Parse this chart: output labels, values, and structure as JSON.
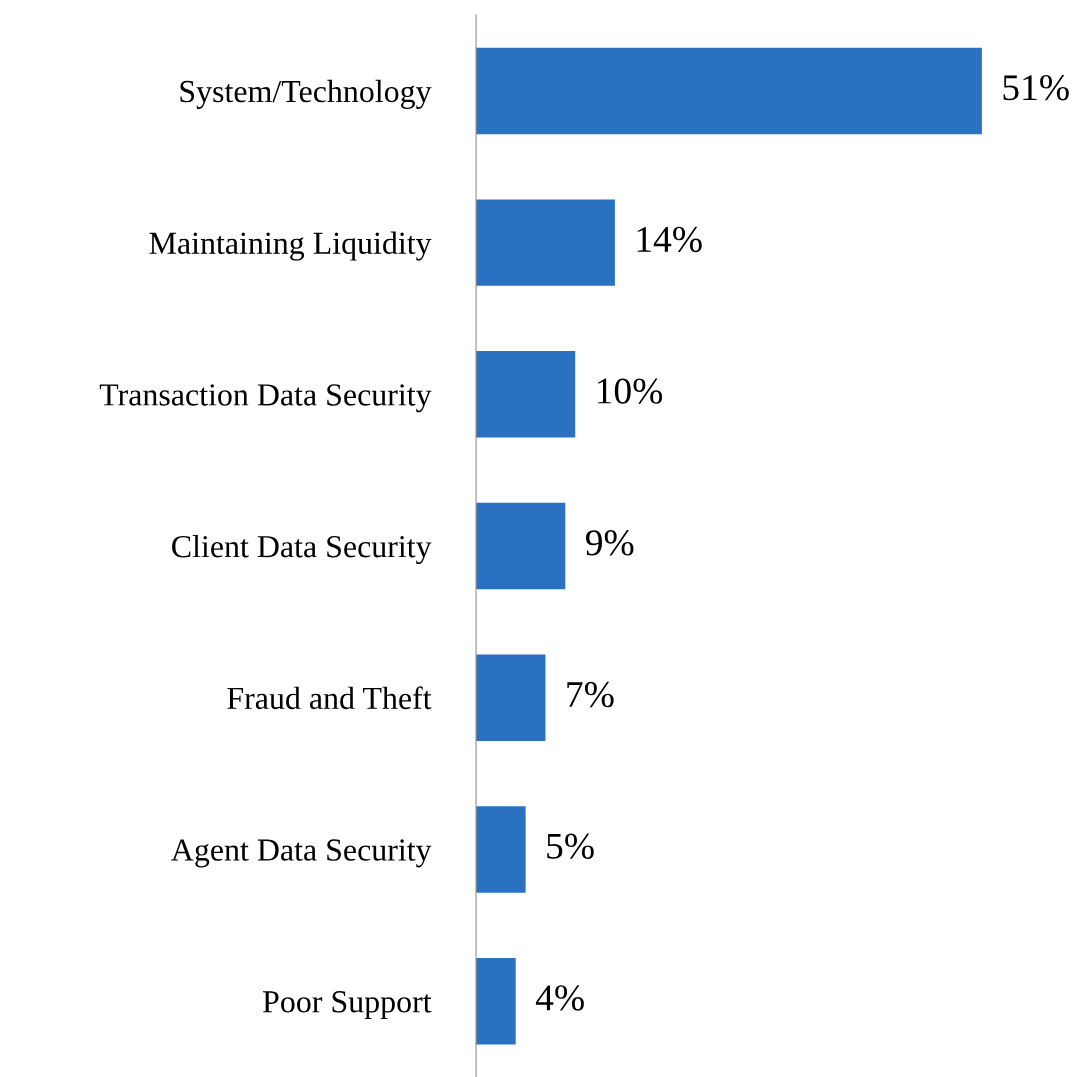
{
  "chart_data": {
    "type": "bar",
    "orientation": "horizontal",
    "categories": [
      "System/Technology",
      "Maintaining Liquidity",
      "Transaction Data Security",
      "Client Data Security",
      "Fraud and Theft",
      "Agent Data Security",
      "Poor Support"
    ],
    "values": [
      51,
      14,
      10,
      9,
      7,
      5,
      4
    ],
    "value_labels": [
      "51%",
      "14%",
      "10%",
      "9%",
      "7%",
      "5%",
      "4%"
    ],
    "color": "#2a72c1",
    "grid": false,
    "legend": false,
    "tick_labels": "y"
  }
}
